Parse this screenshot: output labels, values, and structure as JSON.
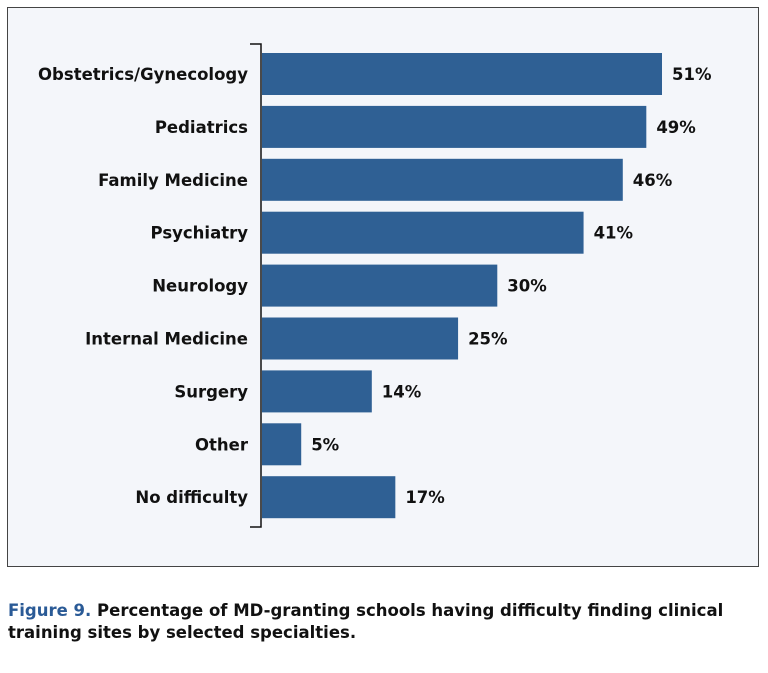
{
  "chart_data": {
    "type": "bar",
    "orientation": "horizontal",
    "categories": [
      "Obstetrics/Gynecology",
      "Pediatrics",
      "Family Medicine",
      "Psychiatry",
      "Neurology",
      "Internal Medicine",
      "Surgery",
      "Other",
      "No difficulty"
    ],
    "values": [
      51,
      49,
      46,
      41,
      30,
      25,
      14,
      5,
      17
    ],
    "data_labels": [
      "51%",
      "49%",
      "46%",
      "41%",
      "30%",
      "25%",
      "14%",
      "5%",
      "17%"
    ],
    "xlim": [
      0,
      51
    ],
    "grid": false,
    "bar_color": "#2f6094",
    "title": "",
    "xlabel": "",
    "ylabel": ""
  },
  "caption": {
    "figure_label": "Figure 9.",
    "text": " Percentage of MD-granting schools having difficulty finding clinical training sites by selected specialties.",
    "label_color": "#2a5a96"
  }
}
